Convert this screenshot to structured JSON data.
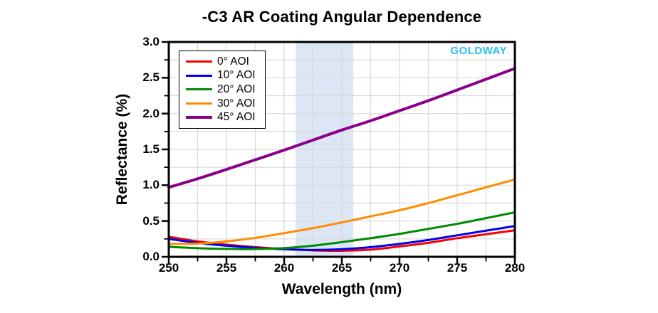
{
  "watermark": {
    "text": "GOLDWAY",
    "color": "#29bff0"
  },
  "chart_data": {
    "type": "line",
    "title": "-C3 AR Coating Angular Dependence",
    "xlabel": "Wavelength (nm)",
    "ylabel": "Reflectance (%)",
    "xlim": [
      250,
      280
    ],
    "ylim": [
      0.0,
      3.0
    ],
    "x_ticks": [
      "250",
      "255",
      "260",
      "265",
      "270",
      "275",
      "280"
    ],
    "y_ticks": [
      "0.0",
      "0.5",
      "1.0",
      "1.5",
      "2.0",
      "2.5",
      "3.0"
    ],
    "x_minor_step": 2.5,
    "y_minor_step": 0.25,
    "grid": true,
    "grid_color": "#d9d9d9",
    "axis_color": "#000000",
    "legend_position": "top-left",
    "highlight_band": {
      "x_start": 261,
      "x_end": 266,
      "color": "#dce6f5"
    },
    "x": [
      250,
      252.5,
      255,
      257.5,
      260,
      262.5,
      265,
      267.5,
      270,
      272.5,
      275,
      277.5,
      280
    ],
    "series": [
      {
        "name": "0° AOI",
        "color": "#f40000",
        "values": [
          0.28,
          0.215,
          0.17,
          0.135,
          0.11,
          0.09,
          0.085,
          0.1,
          0.145,
          0.195,
          0.26,
          0.315,
          0.37
        ]
      },
      {
        "name": "10° AOI",
        "color": "#0000ee",
        "values": [
          0.25,
          0.195,
          0.155,
          0.125,
          0.105,
          0.095,
          0.105,
          0.135,
          0.18,
          0.235,
          0.3,
          0.365,
          0.43
        ]
      },
      {
        "name": "20° AOI",
        "color": "#008a00",
        "values": [
          0.14,
          0.12,
          0.11,
          0.108,
          0.122,
          0.155,
          0.205,
          0.26,
          0.32,
          0.39,
          0.46,
          0.54,
          0.62
        ]
      },
      {
        "name": "30° AOI",
        "color": "#ff8c00",
        "values": [
          0.18,
          0.185,
          0.215,
          0.265,
          0.33,
          0.4,
          0.48,
          0.565,
          0.65,
          0.75,
          0.86,
          0.97,
          1.08
        ]
      },
      {
        "name": "45° AOI",
        "color": "#8b008b",
        "values": [
          0.97,
          1.09,
          1.22,
          1.355,
          1.49,
          1.63,
          1.77,
          1.9,
          2.04,
          2.18,
          2.33,
          2.48,
          2.63
        ]
      }
    ]
  }
}
